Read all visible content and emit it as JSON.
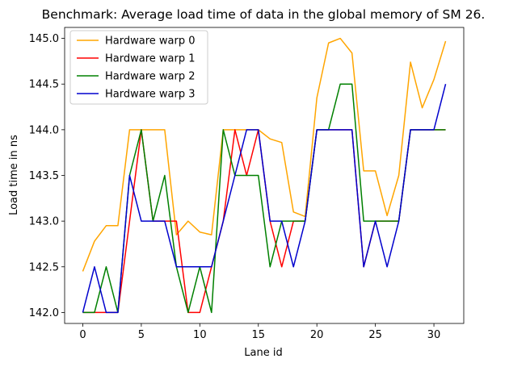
{
  "chart_data": {
    "type": "line",
    "title": "Benchmark: Average load time of data in the global memory of SM 26.",
    "xlabel": "Lane id",
    "ylabel": "Load time in ns",
    "xlim": [
      -1.55,
      32.55
    ],
    "ylim": [
      141.88,
      145.12
    ],
    "xticks": [
      0,
      5,
      10,
      15,
      20,
      25,
      30
    ],
    "yticks": [
      142.0,
      142.5,
      143.0,
      143.5,
      144.0,
      144.5,
      145.0
    ],
    "ytick_labels": [
      "142.0",
      "142.5",
      "143.0",
      "143.5",
      "144.0",
      "144.5",
      "145.0"
    ],
    "grid": false,
    "legend_position": "top-left",
    "x": [
      0,
      1,
      2,
      3,
      4,
      5,
      6,
      7,
      8,
      9,
      10,
      11,
      12,
      13,
      14,
      15,
      16,
      17,
      18,
      19,
      20,
      21,
      22,
      23,
      24,
      25,
      26,
      27,
      28,
      29,
      30,
      31
    ],
    "series": [
      {
        "name": "Hardware warp 0",
        "color": "#ffa500",
        "values": [
          142.45,
          142.78,
          142.95,
          142.95,
          144.0,
          144.0,
          144.0,
          144.0,
          142.85,
          143.0,
          142.88,
          142.85,
          144.0,
          144.0,
          144.0,
          144.0,
          143.9,
          143.86,
          143.1,
          143.05,
          144.35,
          144.95,
          145.0,
          144.84,
          143.55,
          143.55,
          143.06,
          143.5,
          144.74,
          144.24,
          144.55,
          144.97
        ]
      },
      {
        "name": "Hardware warp 1",
        "color": "#ff0000",
        "values": [
          142.0,
          142.0,
          142.0,
          142.0,
          143.0,
          144.0,
          143.0,
          143.0,
          143.0,
          142.0,
          142.0,
          142.5,
          143.0,
          144.0,
          143.5,
          144.0,
          143.0,
          142.5,
          143.0,
          143.0,
          144.0,
          144.0,
          144.0,
          144.0,
          142.5,
          143.0,
          143.0,
          143.0,
          144.0,
          144.0,
          144.0,
          144.0
        ]
      },
      {
        "name": "Hardware warp 2",
        "color": "#008000",
        "values": [
          142.0,
          142.0,
          142.5,
          142.0,
          143.5,
          144.0,
          143.0,
          143.5,
          142.5,
          142.0,
          142.5,
          142.0,
          144.0,
          143.5,
          143.5,
          143.5,
          142.5,
          143.0,
          143.0,
          143.0,
          144.0,
          144.0,
          144.5,
          144.5,
          143.0,
          143.0,
          143.0,
          143.0,
          144.0,
          144.0,
          144.0,
          144.0
        ]
      },
      {
        "name": "Hardware warp 3",
        "color": "#0000cd",
        "values": [
          142.0,
          142.5,
          142.0,
          142.0,
          143.5,
          143.0,
          143.0,
          143.0,
          142.5,
          142.5,
          142.5,
          142.5,
          143.0,
          143.5,
          144.0,
          144.0,
          143.0,
          143.0,
          142.5,
          143.0,
          144.0,
          144.0,
          144.0,
          144.0,
          142.5,
          143.0,
          142.5,
          143.0,
          144.0,
          144.0,
          144.0,
          144.5
        ]
      }
    ]
  }
}
